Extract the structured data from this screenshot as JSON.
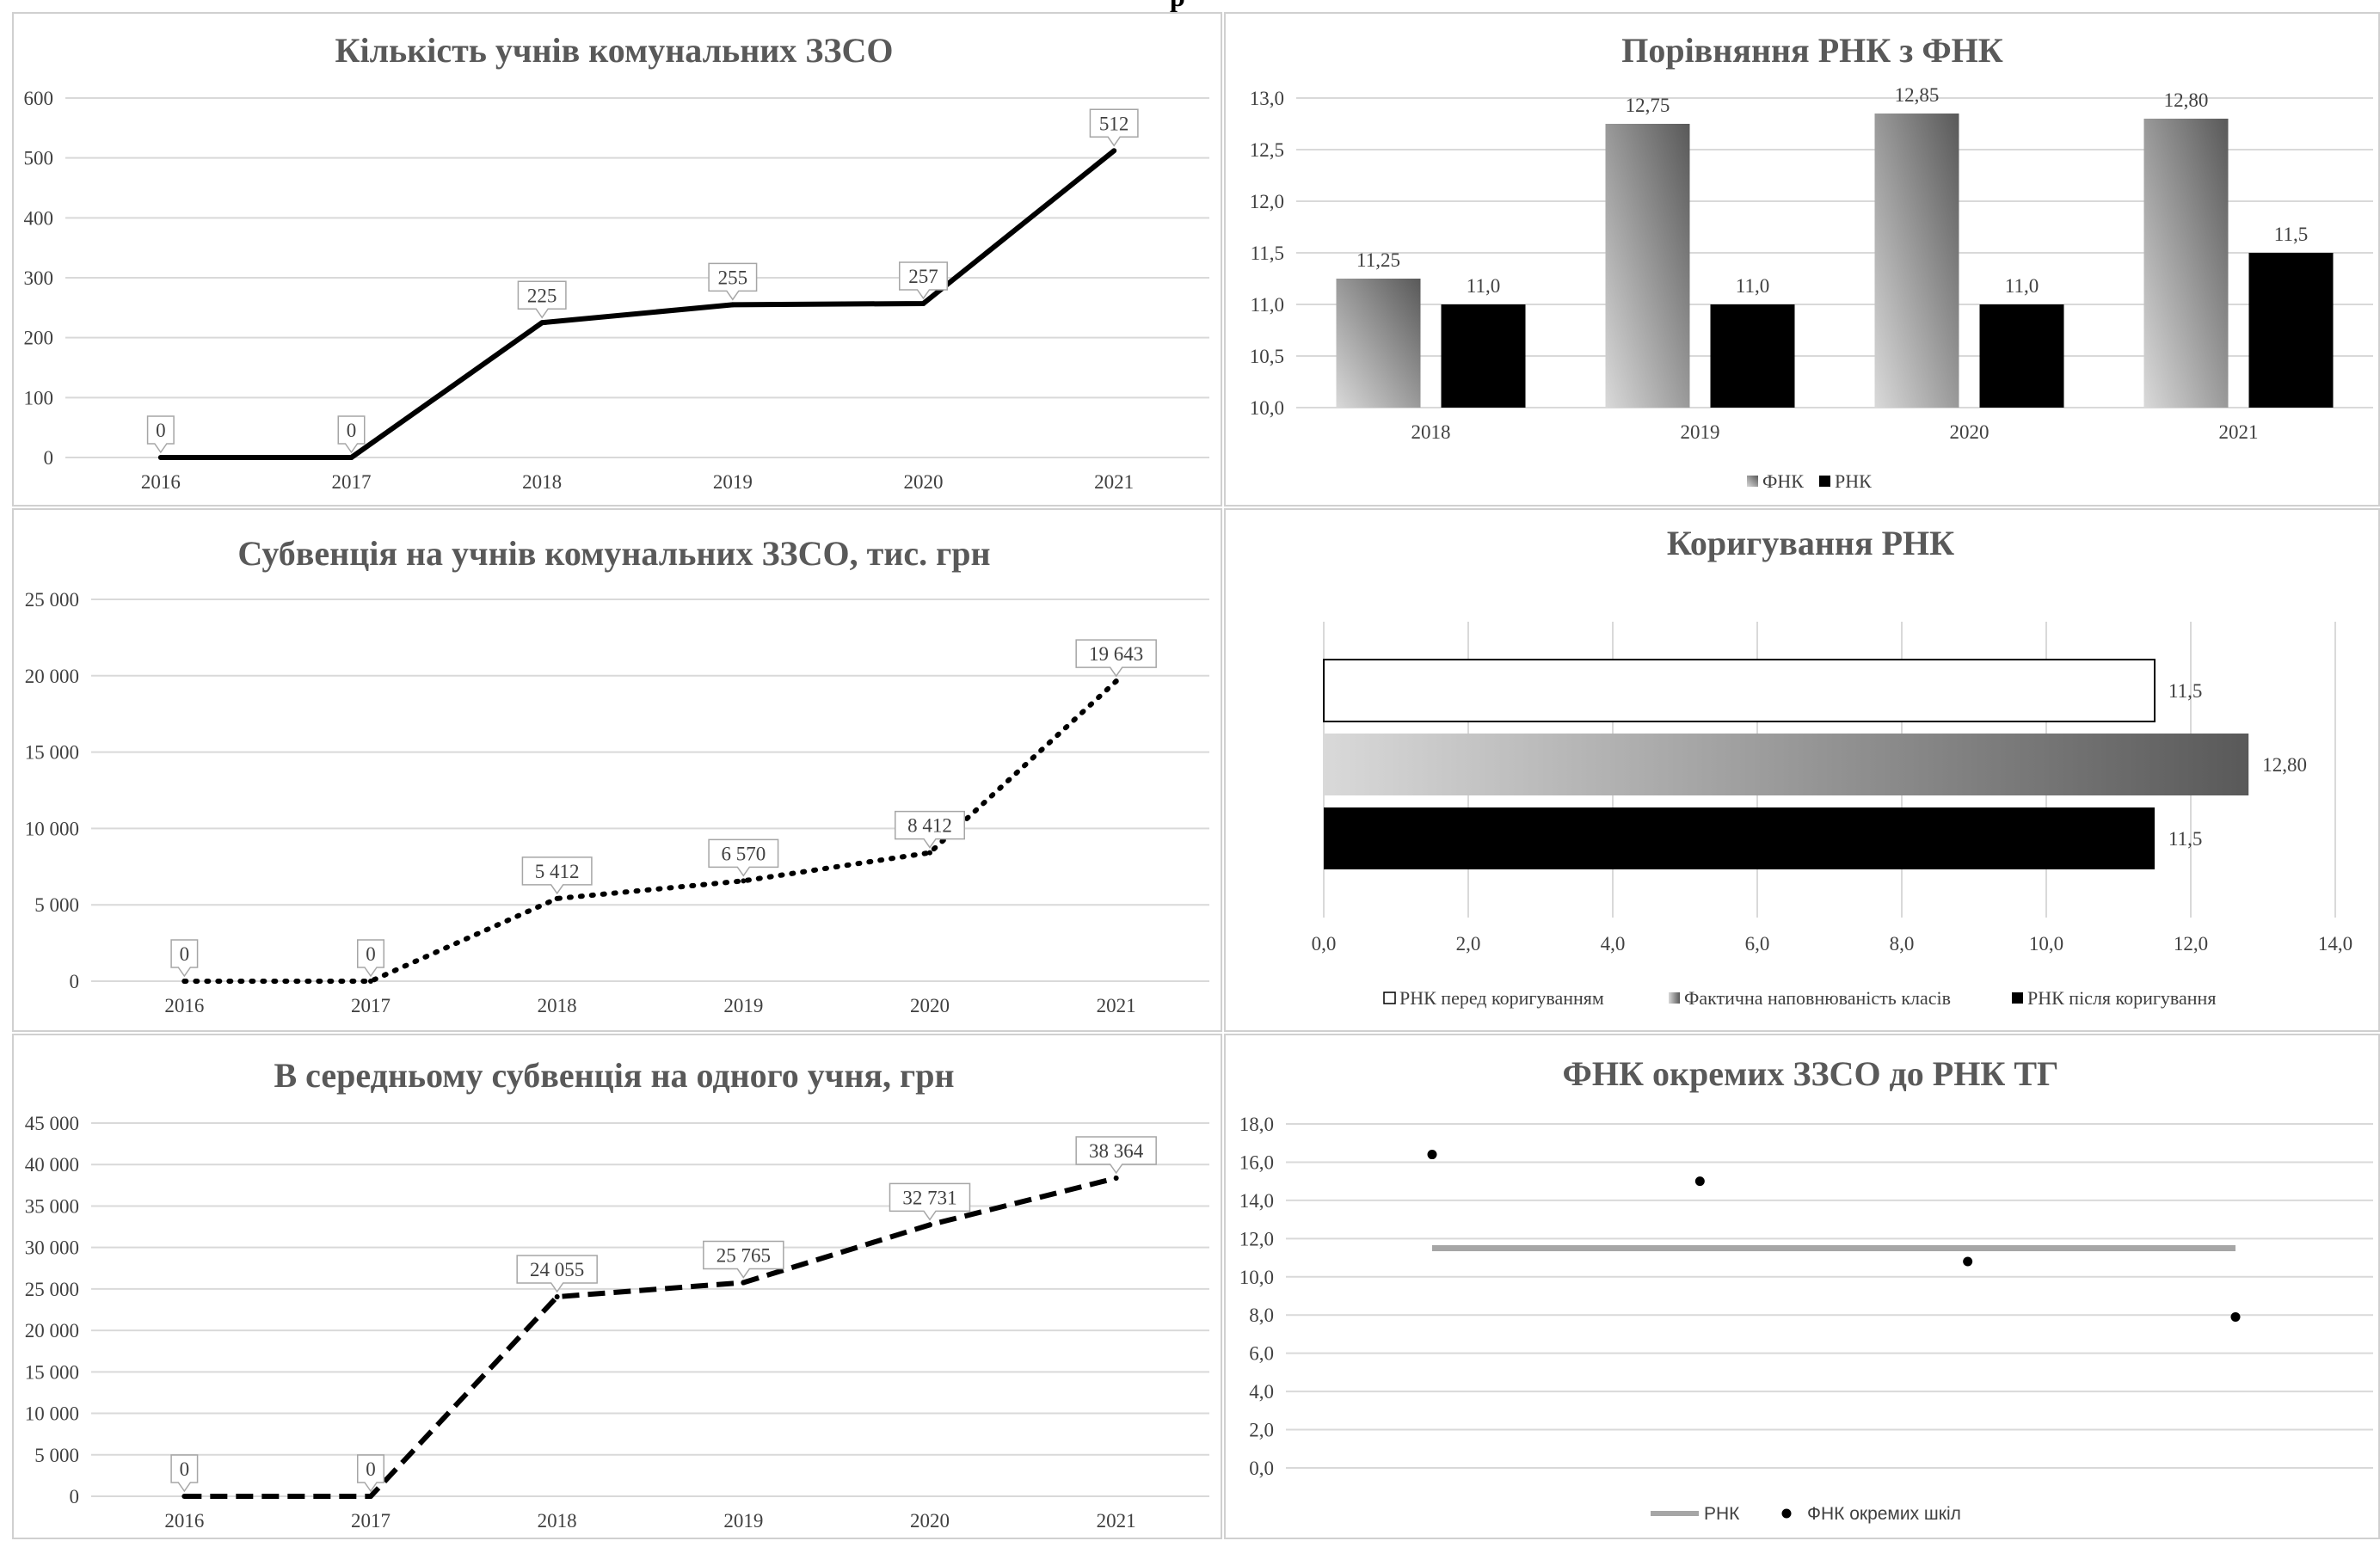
{
  "colors": {
    "line": "#000000",
    "grid": "#d9d9d9",
    "fnk_dark": "#595959",
    "fnk_light": "#d9d9d9",
    "rnk_line": "#a6a6a6"
  },
  "chart_data": [
    {
      "id": "students",
      "type": "line",
      "title": "Кількість учнів комунальних ЗЗСО",
      "categories": [
        "2016",
        "2017",
        "2018",
        "2019",
        "2020",
        "2021"
      ],
      "values": [
        0,
        0,
        225,
        255,
        257,
        512
      ],
      "labels": [
        "0",
        "0",
        "225",
        "255",
        "257",
        "512"
      ],
      "yticks": [
        "0",
        "100",
        "200",
        "300",
        "400",
        "500",
        "600"
      ],
      "ylim": [
        0,
        600
      ],
      "line_style": "solid",
      "grid": true
    },
    {
      "id": "compare",
      "type": "bar",
      "title": "Порівняння РНК з ФНК",
      "categories": [
        "2018",
        "2019",
        "2020",
        "2021"
      ],
      "series": [
        {
          "name": "ФНК",
          "values": [
            11.25,
            12.75,
            12.85,
            12.8
          ],
          "labels": [
            "11,25",
            "12,75",
            "12,85",
            "12,80"
          ]
        },
        {
          "name": "РНК",
          "values": [
            11.0,
            11.0,
            11.0,
            11.5
          ],
          "labels": [
            "11,0",
            "11,0",
            "11,0",
            "11,5"
          ]
        }
      ],
      "yticks": [
        "10,0",
        "10,5",
        "11,0",
        "11,5",
        "12,0",
        "12,5",
        "13,0"
      ],
      "ylim": [
        10,
        13
      ],
      "legend_position": "bottom",
      "grid": true
    },
    {
      "id": "subvention",
      "type": "line",
      "title": "Субвенція на учнів комунальних ЗЗСО, тис. грн",
      "categories": [
        "2016",
        "2017",
        "2018",
        "2019",
        "2020",
        "2021"
      ],
      "values": [
        0,
        0,
        5412,
        6570,
        8412,
        19643
      ],
      "labels": [
        "0",
        "0",
        "5 412",
        "6 570",
        "8 412",
        "19 643"
      ],
      "yticks": [
        "0",
        "5 000",
        "10 000",
        "15 000",
        "20 000",
        "25 000"
      ],
      "ylim": [
        0,
        25000
      ],
      "line_style": "dotted",
      "grid": true
    },
    {
      "id": "correction",
      "type": "bar",
      "orientation": "horizontal",
      "title": "Коригування РНК",
      "series": [
        {
          "name": "РНК перед коригуванням",
          "value": 11.5,
          "label": "11,5"
        },
        {
          "name": "Фактична наповнюваність класів",
          "value": 12.8,
          "label": "12,80"
        },
        {
          "name": "РНК після коригування",
          "value": 11.5,
          "label": "11,5"
        }
      ],
      "xticks": [
        "0,0",
        "2,0",
        "4,0",
        "6,0",
        "8,0",
        "10,0",
        "12,0",
        "14,0"
      ],
      "xlim": [
        0,
        14
      ],
      "legend_position": "bottom",
      "grid": true
    },
    {
      "id": "per_student",
      "type": "line",
      "title": "В середньому субвенція на одного учня, грн",
      "categories": [
        "2016",
        "2017",
        "2018",
        "2019",
        "2020",
        "2021"
      ],
      "values": [
        0,
        0,
        24055,
        25765,
        32731,
        38364
      ],
      "labels": [
        "0",
        "0",
        "24 055",
        "25 765",
        "32 731",
        "38 364"
      ],
      "yticks": [
        "0",
        "5 000",
        "10 000",
        "15 000",
        "20 000",
        "25 000",
        "30 000",
        "35 000",
        "40 000",
        "45 000"
      ],
      "ylim": [
        0,
        45000
      ],
      "line_style": "dashed",
      "grid": true
    },
    {
      "id": "schools",
      "type": "scatter",
      "title": "ФНК окремих ЗЗСО до РНК ТГ",
      "x": [
        1,
        2,
        3,
        4
      ],
      "points": [
        16.4,
        15.0,
        10.8,
        7.9
      ],
      "rnk": [
        11.5,
        11.5
      ],
      "series_names": {
        "line": "РНК",
        "points": "ФНК окремих шкіл"
      },
      "yticks": [
        "0,0",
        "2,0",
        "4,0",
        "6,0",
        "8,0",
        "10,0",
        "12,0",
        "14,0",
        "16,0",
        "18,0"
      ],
      "ylim": [
        0,
        18
      ],
      "legend_position": "bottom",
      "grid": true
    }
  ]
}
